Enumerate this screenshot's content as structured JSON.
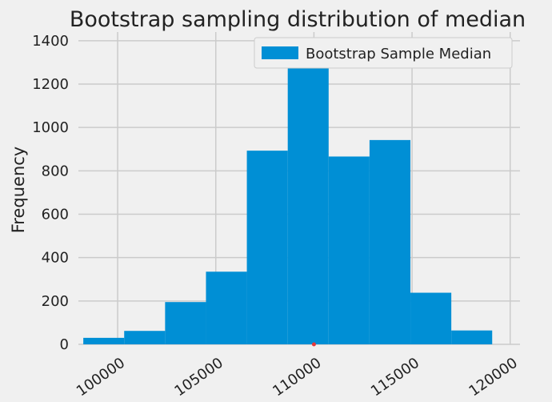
{
  "chart_data": {
    "type": "bar",
    "title": "Bootstrap sampling distribution of median",
    "xlabel": "",
    "ylabel": "Frequency",
    "xlim": [
      98000,
      120500
    ],
    "ylim": [
      0,
      1440
    ],
    "bin_edges": [
      98250,
      100333,
      102417,
      104500,
      106583,
      108667,
      110750,
      112833,
      114917,
      117000,
      119083
    ],
    "values": [
      30,
      62,
      195,
      335,
      893,
      1375,
      866,
      942,
      238,
      64
    ],
    "x_ticks": [
      100000,
      105000,
      110000,
      115000,
      120000
    ],
    "x_tick_labels": [
      "100000",
      "105000",
      "110000",
      "115000",
      "120000"
    ],
    "y_ticks": [
      0,
      200,
      400,
      600,
      800,
      1000,
      1200,
      1400
    ],
    "y_tick_labels": [
      "0",
      "200",
      "400",
      "600",
      "800",
      "1000",
      "1200",
      "1400"
    ],
    "marker": {
      "x": 110000,
      "y": 0,
      "color": "#e5383b"
    },
    "legend": {
      "entries": [
        "Bootstrap Sample Median"
      ],
      "placement": "top-right"
    },
    "grid": true,
    "colors": {
      "bar": "#008fd5",
      "grid": "#cbcbcb",
      "background": "#f0f0f0"
    }
  }
}
